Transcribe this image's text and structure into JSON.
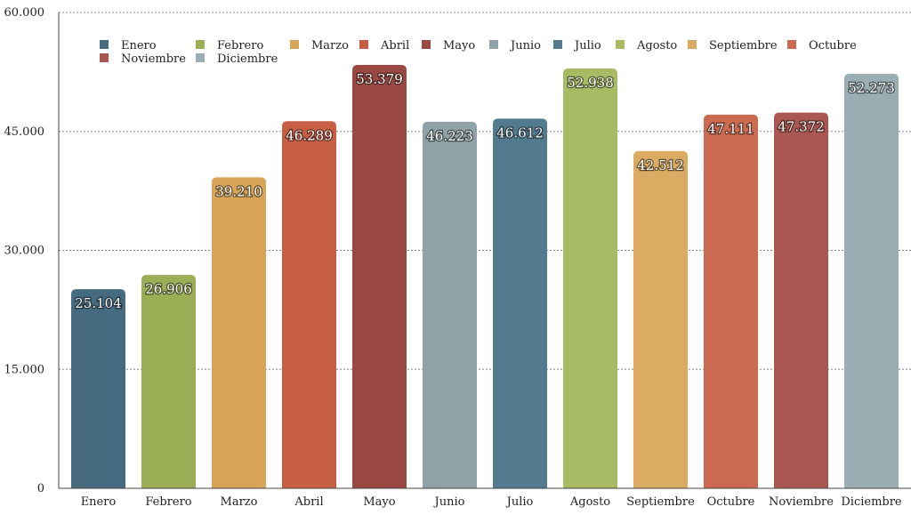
{
  "chart_data": {
    "type": "bar",
    "title": "",
    "xlabel": "",
    "ylabel": "",
    "ylim": [
      0,
      60000
    ],
    "yticks": [
      0,
      15000,
      30000,
      45000,
      60000
    ],
    "ytick_labels": [
      "0",
      "15.000",
      "30.000",
      "45.000",
      "60.000"
    ],
    "grid": true,
    "legend_position": "top-left",
    "categories": [
      "Enero",
      "Febrero",
      "Marzo",
      "Abril",
      "Mayo",
      "Junio",
      "Julio",
      "Agosto",
      "Septiembre",
      "Octubre",
      "Noviembre",
      "Diciembre"
    ],
    "values": [
      25104,
      26906,
      39210,
      46289,
      53379,
      46223,
      46612,
      52938,
      42512,
      47111,
      47372,
      52273
    ],
    "value_labels": [
      "25.104",
      "26.906",
      "39.210",
      "46.289",
      "53.379",
      "46.223",
      "46.612",
      "52.938",
      "42.512",
      "47.111",
      "47.372",
      "52.273"
    ],
    "colors": [
      "#466a80",
      "#9bad55",
      "#d8a457",
      "#c75f44",
      "#9a4942",
      "#8ea2a8",
      "#527b90",
      "#a8ba64",
      "#dcab63",
      "#cb6a50",
      "#a95750",
      "#9aadb3"
    ],
    "legend": [
      "Enero",
      "Febrero",
      "Marzo",
      "Abril",
      "Mayo",
      "Junio",
      "Julio",
      "Agosto",
      "Septiembre",
      "Octubre",
      "Noviembre",
      "Diciembre"
    ]
  }
}
